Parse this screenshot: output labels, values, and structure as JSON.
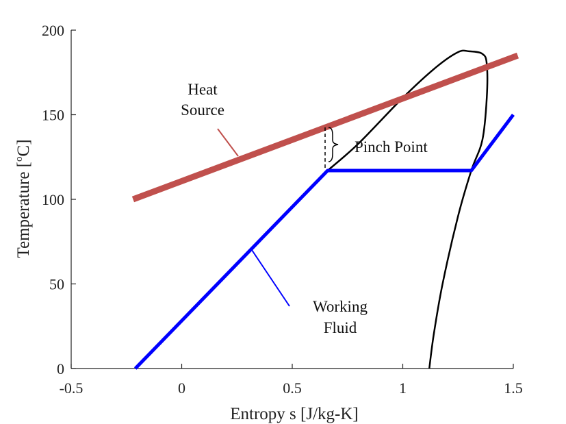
{
  "chart_data": {
    "type": "line",
    "xlabel": "Entropy s [J/kg-K]",
    "ylabel_parts": {
      "before": "Temperature [",
      "sup": "o",
      "after": "C]"
    },
    "xlim": [
      -0.5,
      1.5
    ],
    "ylim": [
      0,
      200
    ],
    "xticks": [
      -0.5,
      0,
      0.5,
      1,
      1.5
    ],
    "xtick_labels": [
      "-0.5",
      "0",
      "0.5",
      "1",
      "1.5"
    ],
    "yticks": [
      0,
      50,
      100,
      150,
      200
    ],
    "ytick_labels": [
      "0",
      "50",
      "100",
      "150",
      "200"
    ],
    "grid": false,
    "series": [
      {
        "name": "Heat Source",
        "color": "#c0504d",
        "points": [
          [
            -0.22,
            100
          ],
          [
            1.52,
            185
          ]
        ]
      },
      {
        "name": "Working Fluid",
        "color": "#0000ff",
        "points": [
          [
            -0.21,
            0
          ],
          [
            0.66,
            117
          ],
          [
            1.31,
            117
          ],
          [
            1.5,
            150
          ]
        ]
      },
      {
        "name": "saturation-dome",
        "color": "#000000",
        "points": [
          [
            0.66,
            117
          ],
          [
            0.8,
            133
          ],
          [
            1.0,
            160
          ],
          [
            1.15,
            178
          ],
          [
            1.25,
            187
          ],
          [
            1.3,
            187.5
          ],
          [
            1.36,
            186
          ],
          [
            1.38,
            180
          ],
          [
            1.38,
            160
          ],
          [
            1.36,
            135
          ],
          [
            1.31,
            117
          ],
          [
            1.25,
            90
          ],
          [
            1.18,
            50
          ],
          [
            1.14,
            20
          ],
          [
            1.12,
            0
          ]
        ]
      }
    ],
    "annotations": {
      "heat_source_line1": "Heat",
      "heat_source_line2": "Source",
      "working_fluid_line1": "Working",
      "working_fluid_line2": "Fluid",
      "pinch_point": "Pinch Point"
    }
  }
}
